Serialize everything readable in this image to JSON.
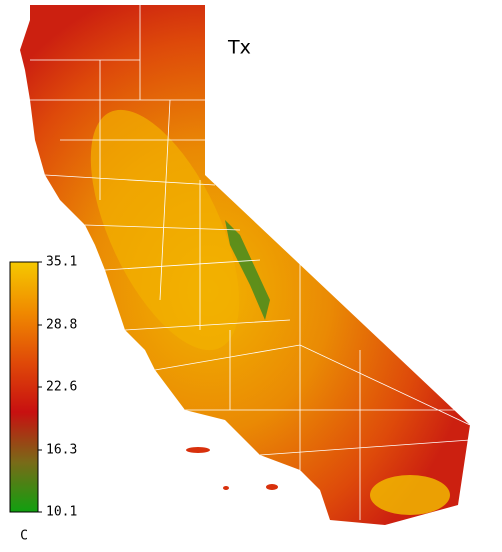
{
  "map": {
    "title": "Tx",
    "colorbar": {
      "range": [
        10.1,
        35.1
      ],
      "ticks": [
        35.1,
        28.8,
        22.6,
        16.3,
        10.1
      ],
      "unit": "C",
      "colors": [
        "#10a010",
        "#7a6a18",
        "#c81010",
        "#e04a08",
        "#f08a00",
        "#f5c800"
      ]
    }
  }
}
